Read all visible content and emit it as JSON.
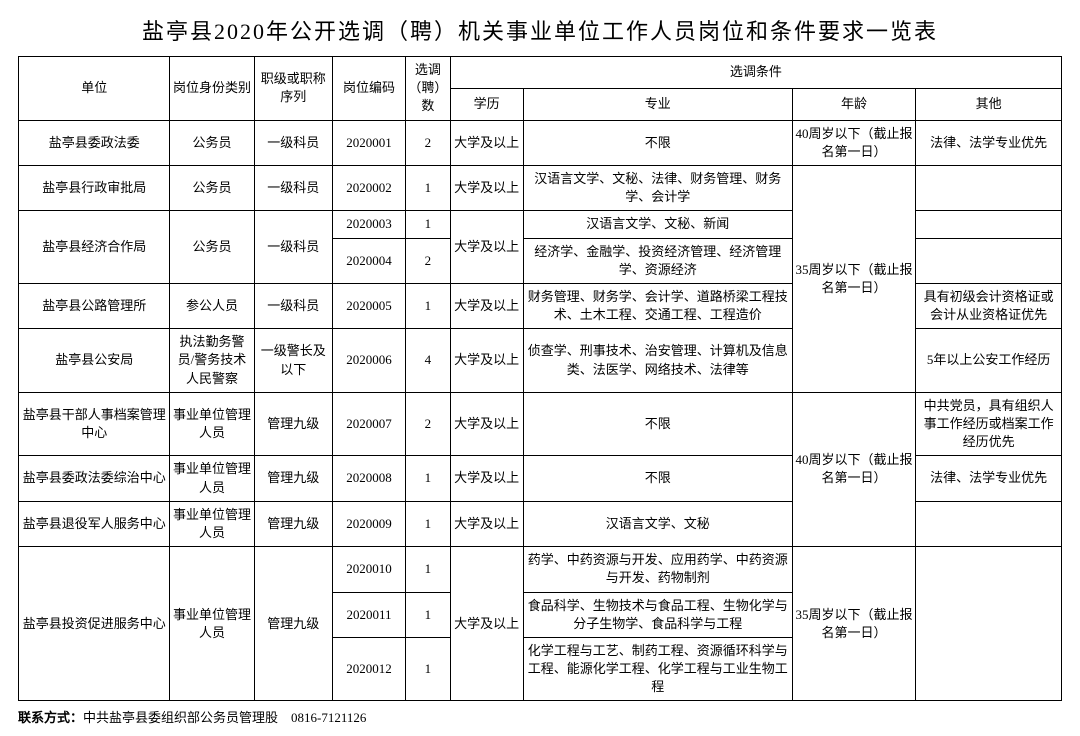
{
  "title": "盐亭县2020年公开选调（聘）机关事业单位工作人员岗位和条件要求一览表",
  "headers": {
    "unit": "单位",
    "idtype": "岗位身份类别",
    "rank": "职级或职称序列",
    "code": "岗位编码",
    "count": "选调（聘）数",
    "cond": "选调条件",
    "edu": "学历",
    "major": "专业",
    "age": "年龄",
    "other": "其他"
  },
  "age": {
    "a40": "40周岁以下（截止报名第一日）",
    "a35": "35周岁以下（截止报名第一日）"
  },
  "edu_ba": "大学及以上",
  "rows": {
    "r1": {
      "unit": "盐亭县委政法委",
      "idtype": "公务员",
      "rank": "一级科员",
      "code": "2020001",
      "count": "2",
      "major": "不限",
      "other": "法律、法学专业优先"
    },
    "r2": {
      "unit": "盐亭县行政审批局",
      "idtype": "公务员",
      "rank": "一级科员",
      "code": "2020002",
      "count": "1",
      "major": "汉语言文学、文秘、法律、财务管理、财务学、会计学",
      "other": ""
    },
    "r3": {
      "unit": "盐亭县经济合作局",
      "idtype": "公务员",
      "rank": "一级科员",
      "code": "2020003",
      "count": "1",
      "major": "汉语言文学、文秘、新闻",
      "other": ""
    },
    "r4": {
      "code": "2020004",
      "count": "2",
      "major": "经济学、金融学、投资经济管理、经济管理学、资源经济",
      "other": ""
    },
    "r5": {
      "unit": "盐亭县公路管理所",
      "idtype": "参公人员",
      "rank": "一级科员",
      "code": "2020005",
      "count": "1",
      "major": "财务管理、财务学、会计学、道路桥梁工程技术、土木工程、交通工程、工程造价",
      "other": "具有初级会计资格证或会计从业资格证优先"
    },
    "r6": {
      "unit": "盐亭县公安局",
      "idtype": "执法勤务警员/警务技术人民警察",
      "rank": "一级警长及以下",
      "code": "2020006",
      "count": "4",
      "major": "侦查学、刑事技术、治安管理、计算机及信息类、法医学、网络技术、法律等",
      "other": "5年以上公安工作经历"
    },
    "r7": {
      "unit": "盐亭县干部人事档案管理中心",
      "idtype": "事业单位管理人员",
      "rank": "管理九级",
      "code": "2020007",
      "count": "2",
      "major": "不限",
      "other": "中共党员，具有组织人事工作经历或档案工作经历优先"
    },
    "r8": {
      "unit": "盐亭县委政法委综治中心",
      "idtype": "事业单位管理人员",
      "rank": "管理九级",
      "code": "2020008",
      "count": "1",
      "major": "不限",
      "other": "法律、法学专业优先"
    },
    "r9": {
      "unit": "盐亭县退役军人服务中心",
      "idtype": "事业单位管理人员",
      "rank": "管理九级",
      "code": "2020009",
      "count": "1",
      "major": "汉语言文学、文秘",
      "other": ""
    },
    "r10": {
      "unit": "盐亭县投资促进服务中心",
      "idtype": "事业单位管理人员",
      "rank": "管理九级",
      "code": "2020010",
      "count": "1",
      "major": "药学、中药资源与开发、应用药学、中药资源与开发、药物制剂",
      "other": ""
    },
    "r11": {
      "code": "2020011",
      "count": "1",
      "major": "食品科学、生物技术与食品工程、生物化学与分子生物学、食品科学与工程",
      "other": ""
    },
    "r12": {
      "code": "2020012",
      "count": "1",
      "major": "化学工程与工艺、制药工程、资源循环科学与工程、能源化学工程、化学工程与工业生物工程",
      "other": ""
    }
  },
  "contact": {
    "label": "联系方式：",
    "text": "中共盐亭县委组织部公务员管理股　0816-7121126"
  }
}
